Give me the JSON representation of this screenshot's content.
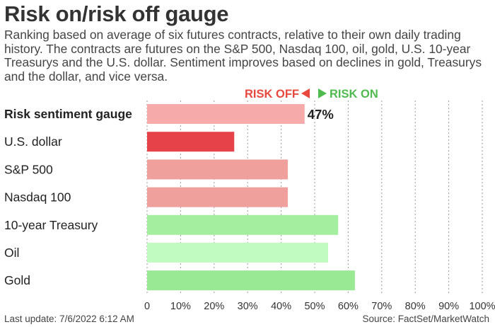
{
  "header": {
    "title": "Risk on/risk off gauge",
    "subtitle": "Ranking based on average of six futures contracts, relative to their own daily trading history. The contracts are futures on the S&P 500, Nasdaq 100, oil, gold, U.S. 10-year Treasurys and the U.S. dollar. Sentiment improves based on declines in gold, Treasurys and the dollar, and vice versa."
  },
  "footer": {
    "last_update": "Last update: 7/6/2022 6:12 AM",
    "source": "Source: FactSet/MarketWatch"
  },
  "chart_data": {
    "type": "bar",
    "orientation": "horizontal",
    "legend": {
      "risk_off": "RISK OFF",
      "risk_on": "RISK ON",
      "risk_off_color": "#e8483e",
      "risk_on_color": "#4fbb4f"
    },
    "categories": [
      "Risk sentiment gauge",
      "U.S. dollar",
      "S&P 500",
      "Nasdaq 100",
      "10-year Treasury",
      "Oil",
      "Gold"
    ],
    "values": [
      47,
      26,
      42,
      42,
      57,
      54,
      62
    ],
    "colors": [
      "#f6aaaa",
      "#e5424a",
      "#f0a09c",
      "#f0a09c",
      "#a4eea0",
      "#c2fbc2",
      "#98e894"
    ],
    "highlight_label": "47%",
    "xlim": [
      0,
      100
    ],
    "xticks": [
      "0",
      "10%",
      "20%",
      "30%",
      "40%",
      "50%",
      "60%",
      "70%",
      "80%",
      "90%",
      "100%"
    ],
    "grid": "vertical dashed"
  }
}
